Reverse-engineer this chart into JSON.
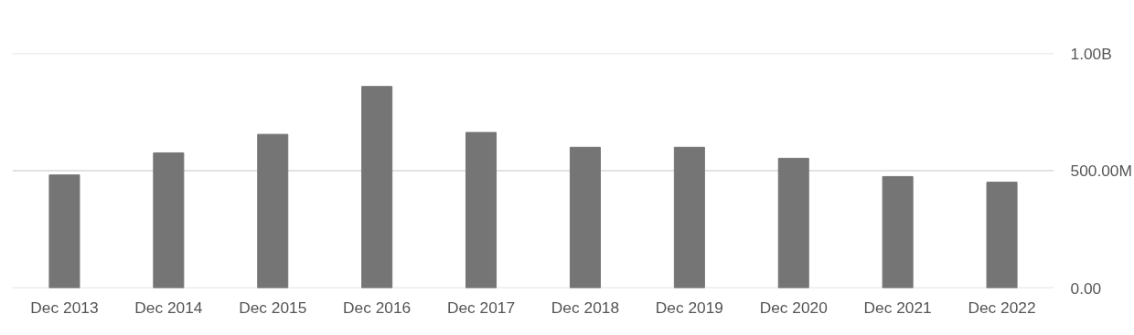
{
  "chart_data": {
    "type": "bar",
    "categories": [
      "Dec 2013",
      "Dec 2014",
      "Dec 2015",
      "Dec 2016",
      "Dec 2017",
      "Dec 2018",
      "Dec 2019",
      "Dec 2020",
      "Dec 2021",
      "Dec 2022"
    ],
    "values": [
      482000000,
      576000000,
      655000000,
      859000000,
      663000000,
      600000000,
      600000000,
      553000000,
      475000000,
      451000000
    ],
    "color": "#757575",
    "ylim": [
      0,
      1000000000
    ],
    "yticks": [
      {
        "value": 0,
        "label": "0.00"
      },
      {
        "value": 500000000,
        "label": "500.00M"
      },
      {
        "value": 1000000000,
        "label": "1.00B"
      }
    ],
    "grid": "y"
  }
}
